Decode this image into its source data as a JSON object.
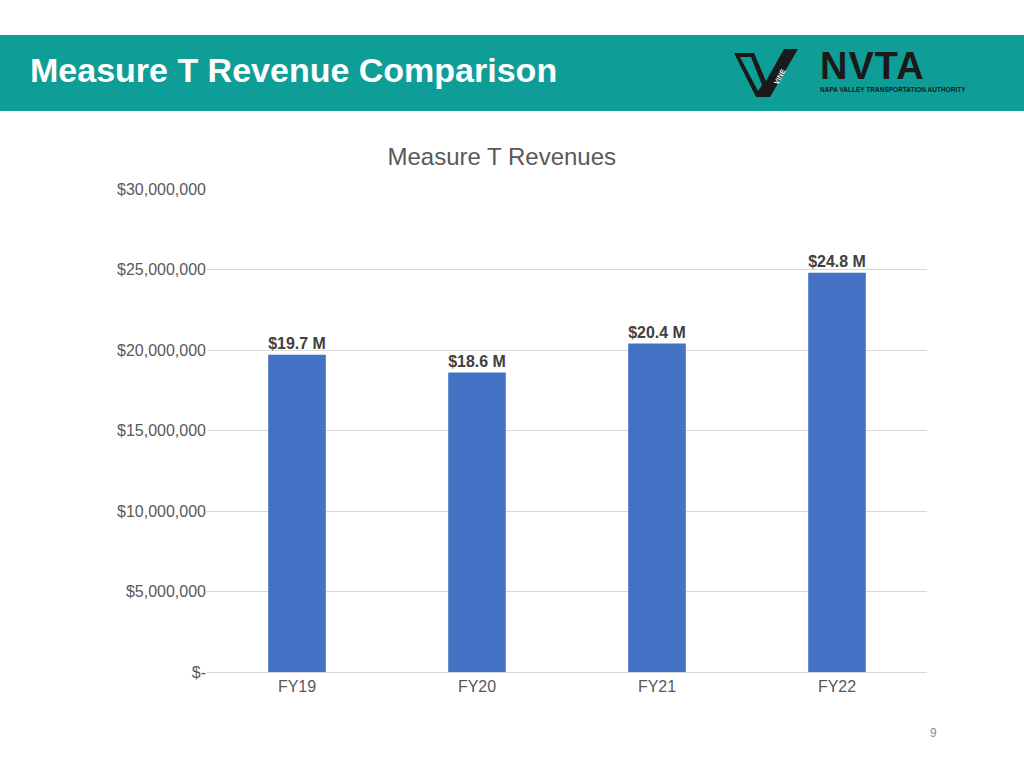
{
  "header": {
    "title": "Measure T Revenue Comparison",
    "logos": {
      "vine": "VINE",
      "nvta": "NVTA",
      "nvta_subtitle": "NAPA VALLEY TRANSPORTATION AUTHORITY"
    }
  },
  "page_number": "9",
  "chart_data": {
    "type": "bar",
    "title": "Measure T Revenues",
    "categories": [
      "FY19",
      "FY20",
      "FY21",
      "FY22"
    ],
    "values": [
      19700000,
      18600000,
      20400000,
      24800000
    ],
    "value_labels": [
      "$19.7 M",
      "$18.6 M",
      "$20.4 M",
      "$24.8 M"
    ],
    "color": "#4472c4",
    "ylim": [
      0,
      30000000
    ],
    "yticks": [
      {
        "value": 0,
        "label": "$-"
      },
      {
        "value": 5000000,
        "label": "$5,000,000"
      },
      {
        "value": 10000000,
        "label": "$10,000,000"
      },
      {
        "value": 15000000,
        "label": "$15,000,000"
      },
      {
        "value": 20000000,
        "label": "$20,000,000"
      },
      {
        "value": 25000000,
        "label": "$25,000,000"
      },
      {
        "value": 30000000,
        "label": "$30,000,000"
      }
    ],
    "grid": true,
    "data_labels": true
  }
}
